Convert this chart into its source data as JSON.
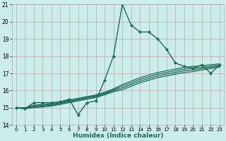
{
  "xlabel": "Humidex (Indice chaleur)",
  "bg_color": "#cceee8",
  "grid_color": "#c8a0a8",
  "line_color": "#1a6b5a",
  "xlim": [
    -0.5,
    23.5
  ],
  "ylim": [
    14,
    21
  ],
  "yticks": [
    14,
    15,
    16,
    17,
    18,
    19,
    20,
    21
  ],
  "xticks": [
    0,
    1,
    2,
    3,
    4,
    5,
    6,
    7,
    8,
    9,
    10,
    11,
    12,
    13,
    14,
    15,
    16,
    17,
    18,
    19,
    20,
    21,
    22,
    23
  ],
  "lines": [
    {
      "x": [
        0,
        1,
        2,
        3,
        4,
        5,
        6,
        7,
        8,
        9,
        10,
        11,
        12,
        13,
        14,
        15,
        16,
        17,
        18,
        19,
        20,
        21,
        22,
        23
      ],
      "y": [
        15.0,
        14.95,
        15.3,
        15.3,
        15.3,
        15.35,
        15.5,
        14.6,
        15.3,
        15.4,
        16.6,
        18.0,
        21.0,
        19.8,
        19.4,
        19.4,
        19.0,
        18.4,
        17.6,
        17.4,
        17.3,
        17.5,
        17.0,
        17.5
      ],
      "marker": true,
      "lw": 1.0
    },
    {
      "x": [
        0,
        1,
        2,
        3,
        4,
        5,
        6,
        7,
        8,
        9,
        10,
        11,
        12,
        13,
        14,
        15,
        16,
        17,
        18,
        19,
        20,
        21,
        22,
        23
      ],
      "y": [
        15.0,
        15.0,
        15.15,
        15.2,
        15.25,
        15.35,
        15.45,
        15.55,
        15.65,
        15.75,
        15.9,
        16.1,
        16.35,
        16.55,
        16.75,
        16.9,
        17.05,
        17.15,
        17.25,
        17.35,
        17.4,
        17.45,
        17.5,
        17.55
      ],
      "marker": false,
      "lw": 0.9
    },
    {
      "x": [
        0,
        1,
        2,
        3,
        4,
        5,
        6,
        7,
        8,
        9,
        10,
        11,
        12,
        13,
        14,
        15,
        16,
        17,
        18,
        19,
        20,
        21,
        22,
        23
      ],
      "y": [
        15.0,
        15.0,
        15.1,
        15.15,
        15.2,
        15.3,
        15.4,
        15.5,
        15.6,
        15.7,
        15.85,
        16.05,
        16.25,
        16.45,
        16.65,
        16.8,
        16.95,
        17.05,
        17.15,
        17.25,
        17.3,
        17.35,
        17.42,
        17.48
      ],
      "marker": false,
      "lw": 0.9
    },
    {
      "x": [
        0,
        1,
        2,
        3,
        4,
        5,
        6,
        7,
        8,
        9,
        10,
        11,
        12,
        13,
        14,
        15,
        16,
        17,
        18,
        19,
        20,
        21,
        22,
        23
      ],
      "y": [
        15.0,
        14.98,
        15.05,
        15.1,
        15.15,
        15.25,
        15.35,
        15.45,
        15.55,
        15.65,
        15.8,
        16.0,
        16.15,
        16.35,
        16.55,
        16.7,
        16.85,
        16.95,
        17.05,
        17.15,
        17.2,
        17.28,
        17.35,
        17.42
      ],
      "marker": false,
      "lw": 0.9
    },
    {
      "x": [
        0,
        1,
        2,
        3,
        4,
        5,
        6,
        7,
        8,
        9,
        10,
        11,
        12,
        13,
        14,
        15,
        16,
        17,
        18,
        19,
        20,
        21,
        22,
        23
      ],
      "y": [
        15.0,
        14.95,
        15.0,
        15.05,
        15.1,
        15.2,
        15.3,
        15.4,
        15.5,
        15.6,
        15.75,
        15.93,
        16.05,
        16.25,
        16.45,
        16.6,
        16.75,
        16.85,
        16.95,
        17.05,
        17.1,
        17.2,
        17.28,
        17.36
      ],
      "marker": false,
      "lw": 0.9
    }
  ]
}
